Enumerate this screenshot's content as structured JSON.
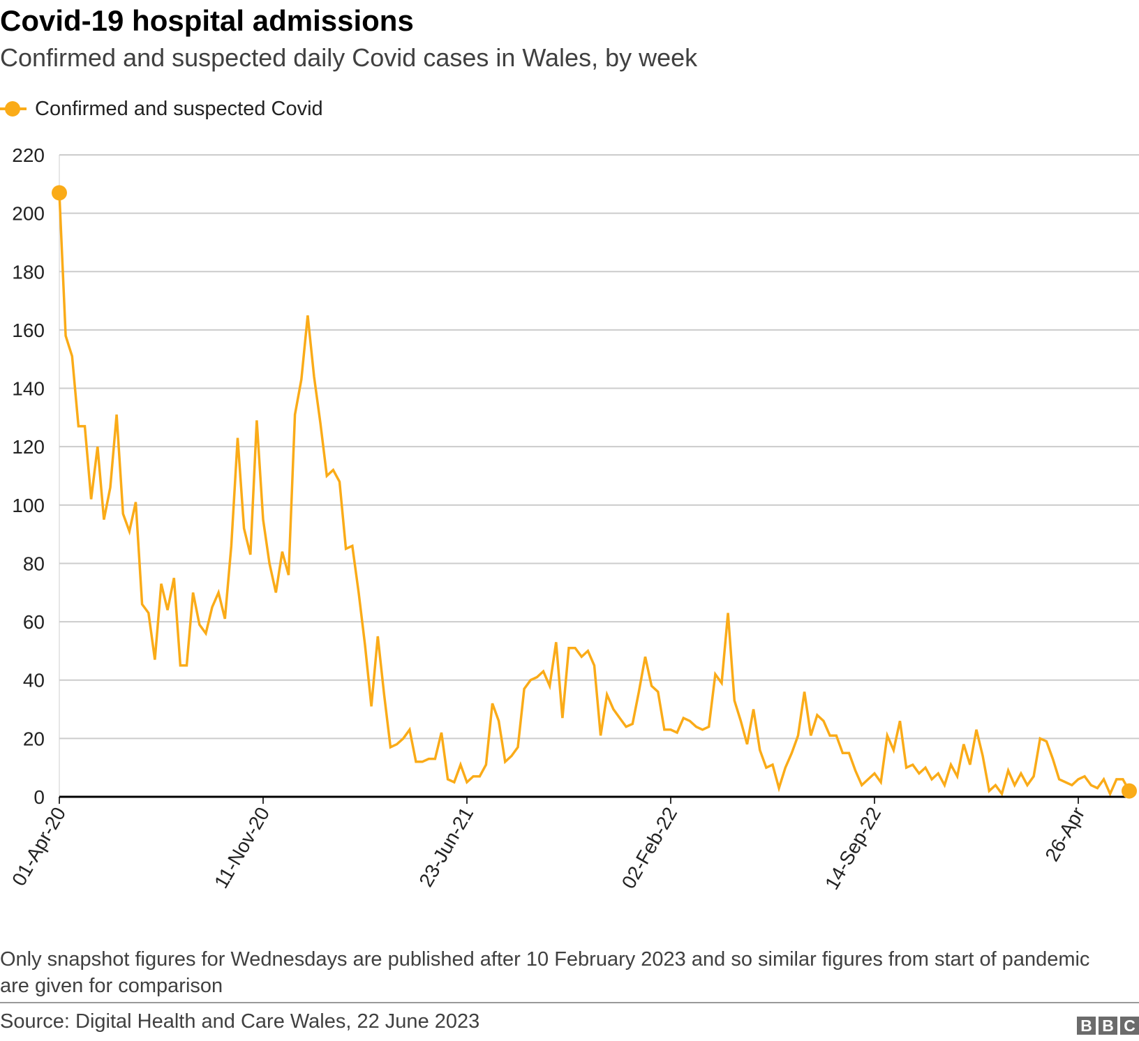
{
  "header": {
    "title": "Covid-19 hospital admissions",
    "subtitle": "Confirmed and suspected daily Covid cases in Wales, by week"
  },
  "legend": {
    "label": "Confirmed and suspected Covid",
    "placement": "top-left"
  },
  "footer": {
    "note": "Only snapshot figures for Wednesdays are published after 10 February 2023 and so similar figures from start of pandemic are given for comparison",
    "source": "Source: Digital Health and Care Wales, 22 June 2023",
    "logo": [
      "B",
      "B",
      "C"
    ]
  },
  "colors": {
    "line": "#FAAB18",
    "grid": "#cccccc",
    "axis": "#000000"
  },
  "chart_data": {
    "type": "line",
    "title": "Covid-19 hospital admissions",
    "subtitle": "Confirmed and suspected daily Covid cases in Wales, by week",
    "xlabel": "",
    "ylabel": "",
    "ylim": [
      0,
      220
    ],
    "yticks": [
      0,
      20,
      40,
      60,
      80,
      100,
      120,
      140,
      160,
      180,
      200,
      220
    ],
    "grid": true,
    "xticks": [
      {
        "date": "2020-04-01",
        "label": "01-Apr-20"
      },
      {
        "date": "2020-11-11",
        "label": "11-Nov-20"
      },
      {
        "date": "2021-06-23",
        "label": "23-Jun-21"
      },
      {
        "date": "2022-02-02",
        "label": "02-Feb-22"
      },
      {
        "date": "2022-09-14",
        "label": "14-Sep-22"
      },
      {
        "date": "2023-04-26",
        "label": "26-Apr"
      }
    ],
    "x": [
      "2020-04-01",
      "2020-04-08",
      "2020-04-15",
      "2020-04-22",
      "2020-04-29",
      "2020-05-06",
      "2020-05-13",
      "2020-05-20",
      "2020-05-27",
      "2020-06-03",
      "2020-06-10",
      "2020-06-17",
      "2020-06-24",
      "2020-07-01",
      "2020-07-08",
      "2020-07-15",
      "2020-07-22",
      "2020-07-29",
      "2020-08-05",
      "2020-08-12",
      "2020-08-19",
      "2020-08-26",
      "2020-09-02",
      "2020-09-09",
      "2020-09-16",
      "2020-09-23",
      "2020-09-30",
      "2020-10-07",
      "2020-10-14",
      "2020-10-21",
      "2020-10-28",
      "2020-11-04",
      "2020-11-11",
      "2020-11-18",
      "2020-11-25",
      "2020-12-02",
      "2020-12-09",
      "2020-12-16",
      "2020-12-23",
      "2020-12-30",
      "2021-01-06",
      "2021-01-13",
      "2021-01-20",
      "2021-01-27",
      "2021-02-03",
      "2021-02-10",
      "2021-02-17",
      "2021-02-24",
      "2021-03-03",
      "2021-03-10",
      "2021-03-17",
      "2021-03-24",
      "2021-03-31",
      "2021-04-07",
      "2021-04-14",
      "2021-04-21",
      "2021-04-28",
      "2021-05-05",
      "2021-05-12",
      "2021-05-19",
      "2021-05-26",
      "2021-06-02",
      "2021-06-09",
      "2021-06-16",
      "2021-06-23",
      "2021-06-30",
      "2021-07-07",
      "2021-07-14",
      "2021-07-21",
      "2021-07-28",
      "2021-08-04",
      "2021-08-11",
      "2021-08-18",
      "2021-08-25",
      "2021-09-01",
      "2021-09-08",
      "2021-09-15",
      "2021-09-22",
      "2021-09-29",
      "2021-10-06",
      "2021-10-13",
      "2021-10-20",
      "2021-10-27",
      "2021-11-03",
      "2021-11-10",
      "2021-11-17",
      "2021-11-24",
      "2021-12-01",
      "2021-12-08",
      "2021-12-15",
      "2021-12-22",
      "2021-12-29",
      "2022-01-05",
      "2022-01-12",
      "2022-01-19",
      "2022-01-26",
      "2022-02-02",
      "2022-02-09",
      "2022-02-16",
      "2022-02-23",
      "2022-03-02",
      "2022-03-09",
      "2022-03-16",
      "2022-03-23",
      "2022-03-30",
      "2022-04-06",
      "2022-04-13",
      "2022-04-20",
      "2022-04-27",
      "2022-05-04",
      "2022-05-11",
      "2022-05-18",
      "2022-05-25",
      "2022-06-01",
      "2022-06-08",
      "2022-06-15",
      "2022-06-22",
      "2022-06-29",
      "2022-07-06",
      "2022-07-13",
      "2022-07-20",
      "2022-07-27",
      "2022-08-03",
      "2022-08-10",
      "2022-08-17",
      "2022-08-24",
      "2022-08-31",
      "2022-09-07",
      "2022-09-14",
      "2022-09-21",
      "2022-09-28",
      "2022-10-05",
      "2022-10-12",
      "2022-10-19",
      "2022-10-26",
      "2022-11-02",
      "2022-11-09",
      "2022-11-16",
      "2022-11-23",
      "2022-11-30",
      "2022-12-07",
      "2022-12-14",
      "2022-12-21",
      "2022-12-28",
      "2023-01-04",
      "2023-01-11",
      "2023-01-18",
      "2023-01-25",
      "2023-02-01",
      "2023-02-08",
      "2023-02-15",
      "2023-02-22",
      "2023-03-01",
      "2023-03-08",
      "2023-03-15",
      "2023-03-22",
      "2023-03-29",
      "2023-04-05",
      "2023-04-12",
      "2023-04-19",
      "2023-04-26",
      "2023-05-03",
      "2023-05-10",
      "2023-05-17",
      "2023-05-24",
      "2023-05-31",
      "2023-06-07",
      "2023-06-14",
      "2023-06-21"
    ],
    "series": [
      {
        "name": "Confirmed and suspected Covid",
        "values": [
          207,
          158,
          151,
          127,
          127,
          102,
          120,
          95,
          106,
          131,
          97,
          91,
          101,
          66,
          63,
          47,
          73,
          64,
          75,
          45,
          45,
          70,
          59,
          56,
          65,
          70,
          61,
          86,
          123,
          92,
          83,
          129,
          95,
          80,
          70,
          84,
          76,
          131,
          143,
          165,
          144,
          128,
          110,
          112,
          108,
          85,
          86,
          70,
          52,
          31,
          55,
          35,
          17,
          18,
          20,
          23,
          12,
          12,
          13,
          13,
          22,
          6,
          5,
          11,
          5,
          7,
          7,
          11,
          32,
          26,
          12,
          14,
          17,
          37,
          40,
          41,
          43,
          38,
          53,
          27,
          51,
          51,
          48,
          50,
          45,
          21,
          35,
          30,
          27,
          24,
          25,
          36,
          48,
          38,
          36,
          23,
          23,
          22,
          27,
          26,
          24,
          23,
          24,
          42,
          39,
          63,
          33,
          26,
          18,
          30,
          16,
          10,
          11,
          3,
          10,
          15,
          21,
          36,
          21,
          28,
          26,
          21,
          21,
          15,
          15,
          9,
          4,
          6,
          8,
          5,
          21,
          16,
          26,
          10,
          11,
          8,
          10,
          6,
          8,
          4,
          11,
          7,
          18,
          11,
          23,
          14,
          2,
          4,
          1,
          9,
          4,
          8,
          4,
          7,
          20,
          19,
          13,
          6,
          5,
          4,
          6,
          7,
          4,
          3,
          6,
          1,
          6,
          6,
          2
        ]
      }
    ]
  }
}
